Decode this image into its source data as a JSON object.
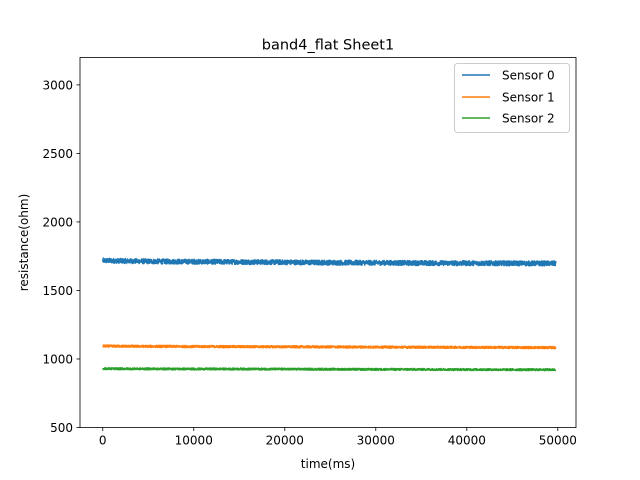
{
  "chart_data": {
    "type": "line",
    "title": "band4_flat Sheet1",
    "xlabel": "time(ms)",
    "ylabel": "resistance(ohm)",
    "xlim": [
      -2500,
      52000
    ],
    "ylim": [
      500,
      3200
    ],
    "x_ticks": [
      0,
      10000,
      20000,
      30000,
      40000,
      50000
    ],
    "x_tick_labels": [
      "0",
      "10000",
      "20000",
      "30000",
      "40000",
      "50000"
    ],
    "y_ticks": [
      500,
      1000,
      1500,
      2000,
      2500,
      3000
    ],
    "y_tick_labels": [
      "500",
      "1000",
      "1500",
      "2000",
      "2500",
      "3000"
    ],
    "grid": false,
    "legend_position": "top-right",
    "x_range": [
      0,
      49800
    ],
    "series": [
      {
        "name": "Sensor 0",
        "color": "#1f77b4",
        "mean": 1705,
        "noise": 18,
        "points": [
          [
            0,
            1718
          ],
          [
            5000,
            1712
          ],
          [
            10000,
            1710
          ],
          [
            15000,
            1708
          ],
          [
            20000,
            1706
          ],
          [
            25000,
            1703
          ],
          [
            30000,
            1702
          ],
          [
            35000,
            1700
          ],
          [
            40000,
            1699
          ],
          [
            45000,
            1698
          ],
          [
            49800,
            1697
          ]
        ]
      },
      {
        "name": "Sensor 1",
        "color": "#ff7f0e",
        "mean": 1088,
        "noise": 8,
        "points": [
          [
            0,
            1094
          ],
          [
            5000,
            1092
          ],
          [
            10000,
            1091
          ],
          [
            15000,
            1090
          ],
          [
            20000,
            1089
          ],
          [
            25000,
            1088
          ],
          [
            30000,
            1087
          ],
          [
            35000,
            1086
          ],
          [
            40000,
            1085
          ],
          [
            45000,
            1084
          ],
          [
            49800,
            1083
          ]
        ]
      },
      {
        "name": "Sensor 2",
        "color": "#2ca02c",
        "mean": 925,
        "noise": 7,
        "points": [
          [
            0,
            929
          ],
          [
            5000,
            928
          ],
          [
            10000,
            927
          ],
          [
            15000,
            927
          ],
          [
            20000,
            926
          ],
          [
            25000,
            925
          ],
          [
            30000,
            924
          ],
          [
            35000,
            924
          ],
          [
            40000,
            923
          ],
          [
            45000,
            922
          ],
          [
            49800,
            922
          ]
        ]
      }
    ]
  }
}
